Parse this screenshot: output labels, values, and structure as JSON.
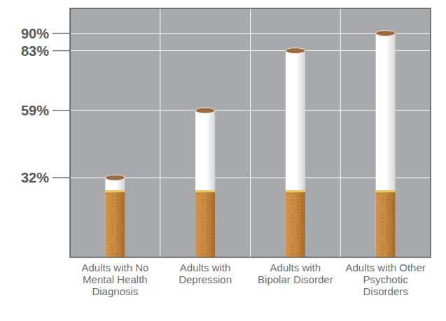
{
  "chart_data": {
    "type": "bar",
    "categories": [
      "Adults with No Mental Health Diagnosis",
      "Adults with Depression",
      "Adults with Bipolar Disorder",
      "Adults with Other Psychotic Disorders"
    ],
    "values": [
      32,
      59,
      83,
      90
    ],
    "color": "#ffffff",
    "ylim": [
      0,
      100
    ],
    "yticks": [
      {
        "value": 32,
        "label": "32%"
      },
      {
        "value": 59,
        "label": "59%"
      },
      {
        "value": 83,
        "label": "83%"
      },
      {
        "value": 90,
        "label": "90%"
      }
    ],
    "grid": true
  }
}
